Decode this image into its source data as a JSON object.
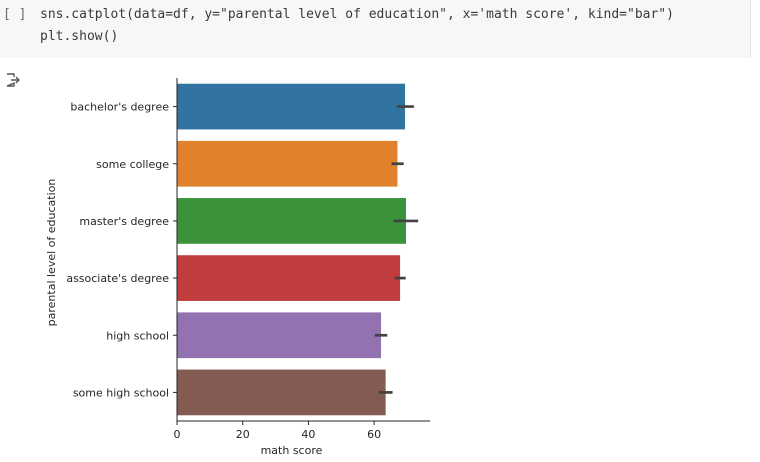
{
  "cell": {
    "run_bracket": "[ ]",
    "code_lines": [
      "sns.catplot(data=df, y=\"parental level of education\", x='math score', kind=\"bar\")",
      "plt.show()"
    ],
    "output_icon": "output-redirect-icon"
  },
  "chart_data": {
    "type": "bar",
    "orientation": "horizontal",
    "categories": [
      "bachelor's degree",
      "some college",
      "master's degree",
      "associate's degree",
      "high school",
      "some high school"
    ],
    "values": [
      69.4,
      67.1,
      69.7,
      67.9,
      62.1,
      63.5
    ],
    "error_low": [
      66.9,
      65.3,
      65.9,
      66.3,
      60.2,
      61.4
    ],
    "error_high": [
      72.1,
      69.0,
      73.4,
      69.6,
      64.0,
      65.6
    ],
    "colors": [
      "#3274a1",
      "#e1812c",
      "#3a923a",
      "#c03d3e",
      "#9372b2",
      "#845b53"
    ],
    "error_color": "#424242",
    "xlabel": "math score",
    "ylabel": "parental level of education",
    "xticks": [
      0,
      20,
      40,
      60
    ],
    "xlim": [
      0,
      77
    ],
    "grid": false
  }
}
